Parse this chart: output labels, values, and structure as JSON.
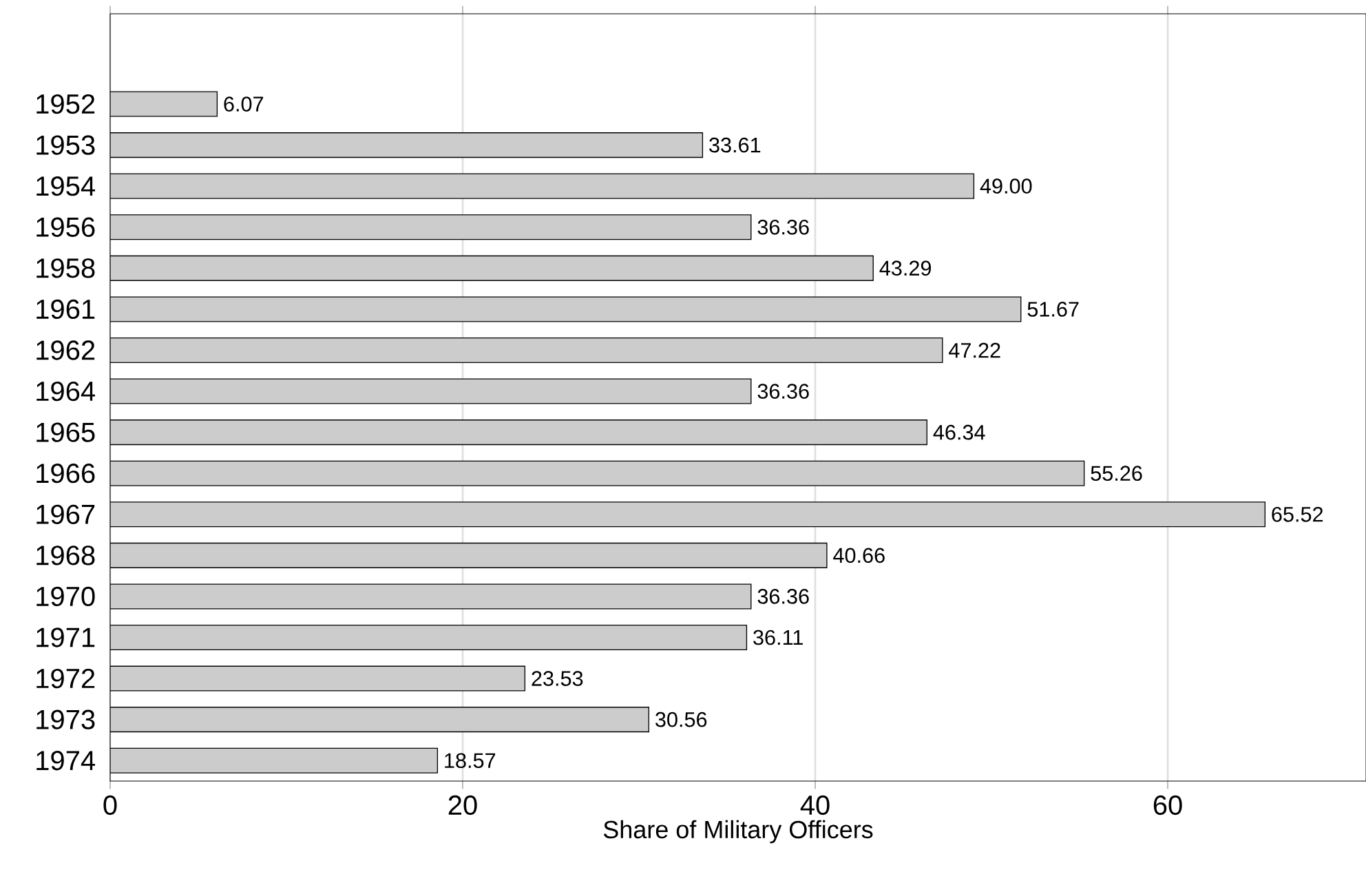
{
  "chart_data": {
    "type": "bar",
    "orientation": "horizontal",
    "xlabel": "Share of Military Officers",
    "categories": [
      "1952",
      "1953",
      "1954",
      "1956",
      "1958",
      "1961",
      "1962",
      "1964",
      "1965",
      "1966",
      "1967",
      "1968",
      "1970",
      "1971",
      "1972",
      "1973",
      "1974"
    ],
    "values": [
      6.07,
      33.61,
      49.0,
      36.36,
      43.29,
      51.67,
      47.22,
      36.36,
      46.34,
      55.26,
      65.52,
      40.66,
      36.36,
      36.11,
      23.53,
      30.56,
      18.57
    ],
    "value_labels": [
      "6.07",
      "33.61",
      "49.00",
      "36.36",
      "43.29",
      "51.67",
      "47.22",
      "36.36",
      "46.34",
      "55.26",
      "65.52",
      "40.66",
      "36.36",
      "36.11",
      "23.53",
      "30.56",
      "18.57"
    ],
    "color": "#cccccc",
    "xlim": [
      0,
      71.25
    ],
    "xticks": [
      0,
      20,
      40,
      60
    ],
    "grid": "x"
  }
}
